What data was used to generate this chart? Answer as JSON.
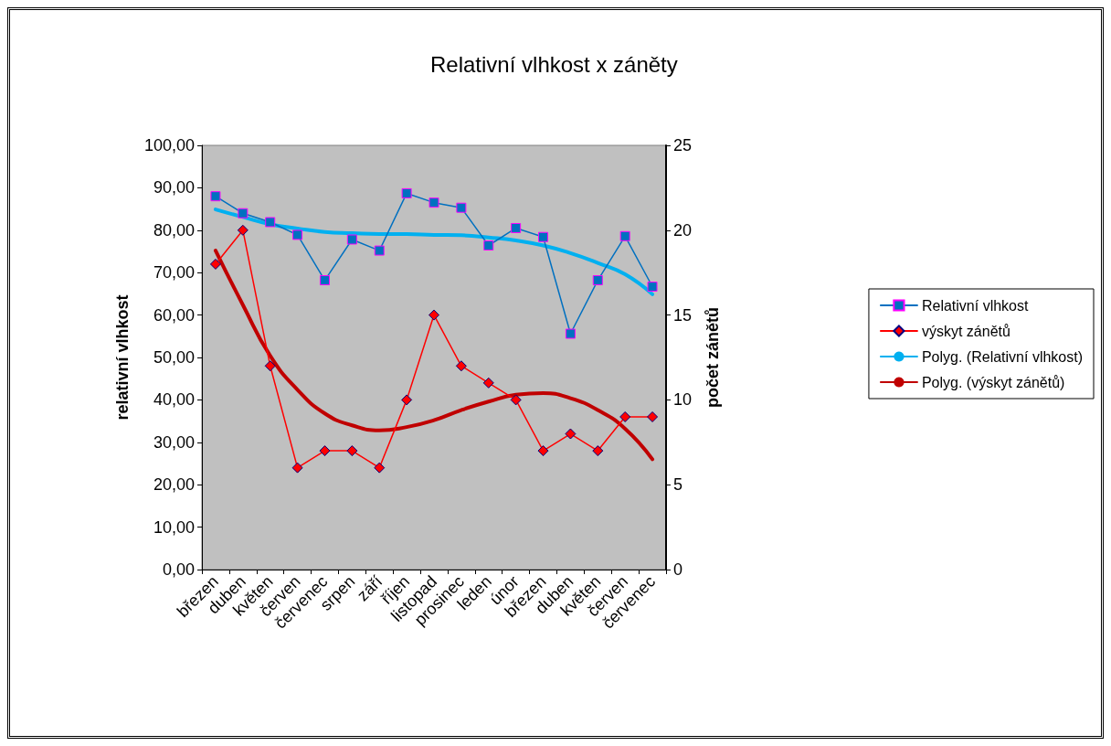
{
  "chart_data": {
    "type": "line",
    "title": "Relativní vlhkost x záněty",
    "ylabel": "relativní vlhkost",
    "y2label": "počet zánětů",
    "categories": [
      "březen",
      "duben",
      "květen",
      "červen",
      "červenec",
      "srpen",
      "září",
      "říjen",
      "listopad",
      "prosinec",
      "leden",
      "únor",
      "březen",
      "duben",
      "květen",
      "červen",
      "červenec"
    ],
    "series": [
      {
        "name": "Relativní vlhkost",
        "color": "#0070c0",
        "marker": "square",
        "values": [
          88.0,
          84.0,
          81.9,
          78.9,
          68.2,
          77.8,
          75.2,
          88.7,
          86.5,
          85.3,
          76.4,
          80.5,
          78.4,
          55.6,
          68.2,
          78.6,
          66.7
        ]
      },
      {
        "name": "výskyt zánětů",
        "color": "#ff0000",
        "marker": "diamond",
        "axis": "y2",
        "values": [
          18,
          20,
          12,
          6,
          7,
          7,
          6,
          10,
          15,
          12,
          11,
          10,
          7,
          8,
          7,
          9,
          9
        ]
      },
      {
        "name": "Polyg. (Relativní vlhkost)",
        "color": "#00b0f0",
        "marker": "none",
        "values": [
          84.9,
          83.1,
          81.4,
          80.4,
          79.6,
          79.3,
          79.1,
          79.1,
          78.9,
          78.8,
          78.3,
          77.6,
          76.4,
          74.6,
          72.3,
          69.6,
          64.9
        ]
      },
      {
        "name": "Polyg. (výskyt zánětů)",
        "color": "#c00000",
        "marker": "none",
        "axis": "y2",
        "values": [
          18.8,
          15.6,
          12.6,
          10.6,
          9.2,
          8.5,
          8.2,
          8.4,
          8.8,
          9.4,
          9.9,
          10.3,
          10.4,
          10.1,
          9.4,
          8.3,
          6.5
        ]
      }
    ],
    "ylim": [
      0,
      100
    ],
    "yticks": [
      {
        "value": 0,
        "label": "0,00"
      },
      {
        "value": 10,
        "label": "10,00"
      },
      {
        "value": 20,
        "label": "20,00"
      },
      {
        "value": 30,
        "label": "30,00"
      },
      {
        "value": 40,
        "label": "40,00"
      },
      {
        "value": 50,
        "label": "50,00"
      },
      {
        "value": 60,
        "label": "60,00"
      },
      {
        "value": 70,
        "label": "70,00"
      },
      {
        "value": 80,
        "label": "80,00"
      },
      {
        "value": 90,
        "label": "90,00"
      },
      {
        "value": 100,
        "label": "100,00"
      }
    ],
    "y2lim": [
      0,
      25
    ],
    "y2ticks": [
      0,
      5,
      10,
      15,
      20,
      25
    ],
    "grid": false,
    "legend": "right"
  }
}
